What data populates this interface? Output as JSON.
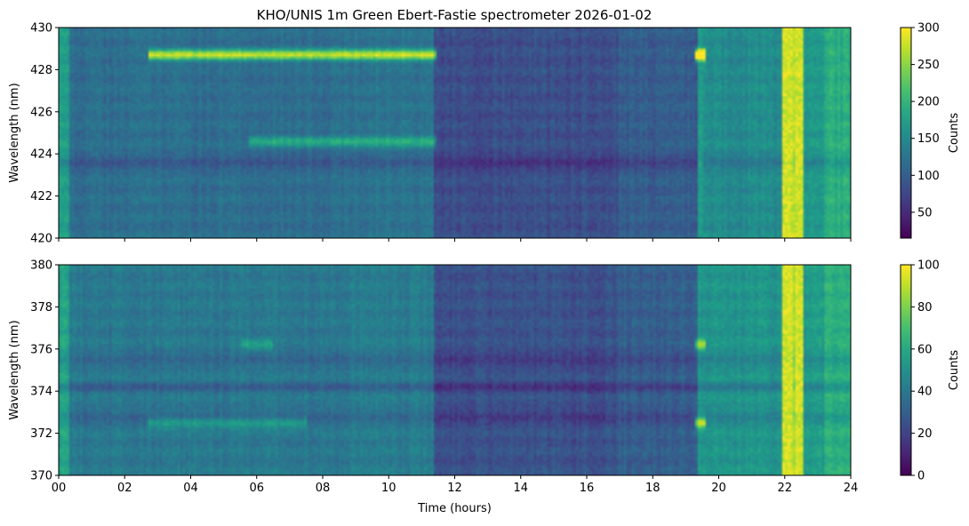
{
  "title": "KHO/UNIS 1m Green Ebert-Fastie spectrometer 2026-01-02",
  "chart_data": [
    {
      "type": "heatmap",
      "xlabel": "",
      "ylabel": "Wavelength (nm)",
      "xlim": [
        0,
        24
      ],
      "ylim": [
        420,
        430
      ],
      "xticks": [
        "00",
        "02",
        "04",
        "06",
        "08",
        "10",
        "12",
        "14",
        "16",
        "18",
        "20",
        "22",
        "24"
      ],
      "xtick_labels_visible": false,
      "yticks": [
        420,
        422,
        424,
        426,
        428,
        430
      ],
      "colormap": "viridis",
      "colorbar": {
        "label": "Counts",
        "range": [
          15,
          300
        ],
        "ticks": [
          50,
          100,
          150,
          200,
          250,
          300
        ]
      },
      "features": {
        "background": [
          {
            "t": [
              0.0,
              0.3
            ],
            "level": 0.55
          },
          {
            "t": [
              0.3,
              8.8
            ],
            "level": 0.36
          },
          {
            "t": [
              8.8,
              11.4
            ],
            "level": 0.38
          },
          {
            "t": [
              11.4,
              17.0
            ],
            "level": 0.24
          },
          {
            "t": [
              17.0,
              19.4
            ],
            "level": 0.29
          },
          {
            "t": [
              19.4,
              21.9
            ],
            "level": 0.48
          },
          {
            "t": [
              21.9,
              22.6
            ],
            "level": 0.9
          },
          {
            "t": [
              22.6,
              23.2
            ],
            "level": 0.52
          },
          {
            "t": [
              23.2,
              24.0
            ],
            "level": 0.62
          }
        ],
        "emission_lines": [
          {
            "wavelength": 428.7,
            "t": [
              2.7,
              11.4
            ],
            "peak": 0.55
          },
          {
            "wavelength": 428.7,
            "t": [
              19.3,
              19.6
            ],
            "peak": 1.0
          },
          {
            "wavelength": 424.6,
            "t": [
              5.8,
              11.4
            ],
            "peak": 0.25
          },
          {
            "wavelength": 423.6,
            "t": [
              0.0,
              24.0
            ],
            "peak": -0.12
          }
        ],
        "bright_columns": [
          {
            "t": [
              21.95,
              22.25
            ],
            "peak": 1.0
          },
          {
            "t": [
              22.35,
              22.55
            ],
            "peak": 1.0
          },
          {
            "t": [
              19.35,
              19.5
            ],
            "peak": 0.6
          }
        ]
      }
    },
    {
      "type": "heatmap",
      "xlabel": "Time (hours)",
      "ylabel": "Wavelength (nm)",
      "xlim": [
        0,
        24
      ],
      "ylim": [
        370,
        380
      ],
      "xticks": [
        "00",
        "02",
        "04",
        "06",
        "08",
        "10",
        "12",
        "14",
        "16",
        "18",
        "20",
        "22",
        "24"
      ],
      "yticks": [
        370,
        372,
        374,
        376,
        378,
        380
      ],
      "colormap": "viridis",
      "colorbar": {
        "label": "Counts",
        "range": [
          0,
          100
        ],
        "ticks": [
          0,
          20,
          40,
          60,
          80,
          100
        ]
      },
      "features": {
        "background": [
          {
            "t": [
              0.0,
              0.3
            ],
            "level": 0.58
          },
          {
            "t": [
              0.3,
              8.8
            ],
            "level": 0.4
          },
          {
            "t": [
              8.8,
              11.4
            ],
            "level": 0.42
          },
          {
            "t": [
              11.4,
              17.0
            ],
            "level": 0.25
          },
          {
            "t": [
              17.0,
              19.4
            ],
            "level": 0.3
          },
          {
            "t": [
              19.4,
              21.9
            ],
            "level": 0.52
          },
          {
            "t": [
              21.9,
              22.6
            ],
            "level": 0.9
          },
          {
            "t": [
              22.6,
              23.2
            ],
            "level": 0.55
          },
          {
            "t": [
              23.2,
              24.0
            ],
            "level": 0.63
          }
        ],
        "emission_lines": [
          {
            "wavelength": 376.2,
            "t": [
              5.5,
              6.5
            ],
            "peak": 0.15
          },
          {
            "wavelength": 376.2,
            "t": [
              19.3,
              19.6
            ],
            "peak": 0.35
          },
          {
            "wavelength": 372.5,
            "t": [
              2.7,
              7.5
            ],
            "peak": 0.18
          },
          {
            "wavelength": 372.5,
            "t": [
              19.3,
              19.6
            ],
            "peak": 0.45
          },
          {
            "wavelength": 375.5,
            "t": [
              0.0,
              24.0
            ],
            "peak": -0.1
          },
          {
            "wavelength": 374.2,
            "t": [
              0.0,
              24.0
            ],
            "peak": -0.1
          },
          {
            "wavelength": 372.8,
            "t": [
              0.0,
              24.0
            ],
            "peak": -0.1
          }
        ],
        "bright_columns": [
          {
            "t": [
              21.95,
              22.25
            ],
            "peak": 1.0
          },
          {
            "t": [
              22.35,
              22.55
            ],
            "peak": 1.0
          },
          {
            "t": [
              19.35,
              19.5
            ],
            "peak": 0.35
          }
        ]
      }
    }
  ]
}
